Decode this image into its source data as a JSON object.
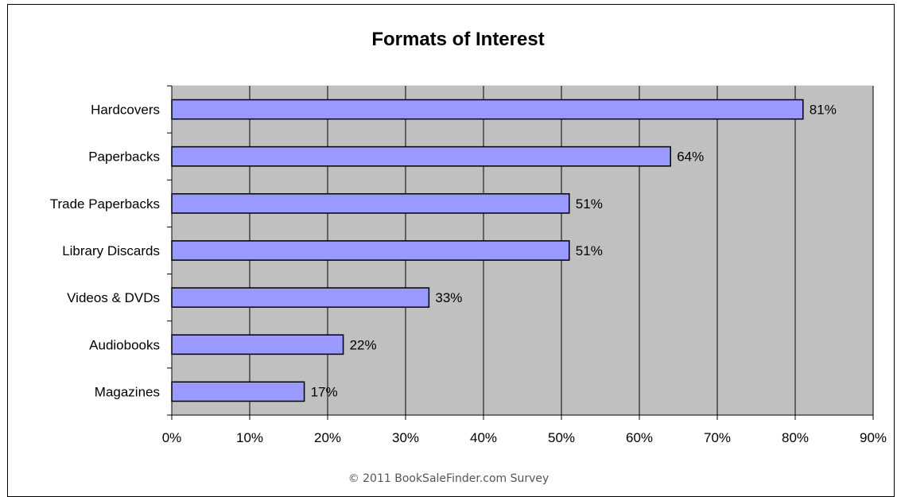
{
  "chart_data": {
    "type": "bar",
    "orientation": "horizontal",
    "title": "Formats of Interest",
    "xlabel": "",
    "ylabel": "",
    "categories": [
      "Hardcovers",
      "Paperbacks",
      "Trade Paperbacks",
      "Library Discards",
      "Videos & DVDs",
      "Audiobooks",
      "Magazines"
    ],
    "values": [
      81,
      64,
      51,
      51,
      33,
      22,
      17
    ],
    "data_labels": [
      "81%",
      "64%",
      "51%",
      "51%",
      "33%",
      "22%",
      "17%"
    ],
    "xlim": [
      0,
      90
    ],
    "x_ticks": [
      0,
      10,
      20,
      30,
      40,
      50,
      60,
      70,
      80,
      90
    ],
    "x_tick_labels": [
      "0%",
      "10%",
      "20%",
      "30%",
      "40%",
      "50%",
      "60%",
      "70%",
      "80%",
      "90%"
    ],
    "grid": "vertical",
    "legend": "none",
    "colors": {
      "bar_fill": "#9999ff",
      "bar_stroke": "#000000",
      "plot_background": "#c0c0c0",
      "gridline": "#000000"
    }
  },
  "footer": {
    "note": "© 2011 BookSaleFinder.com Survey"
  }
}
